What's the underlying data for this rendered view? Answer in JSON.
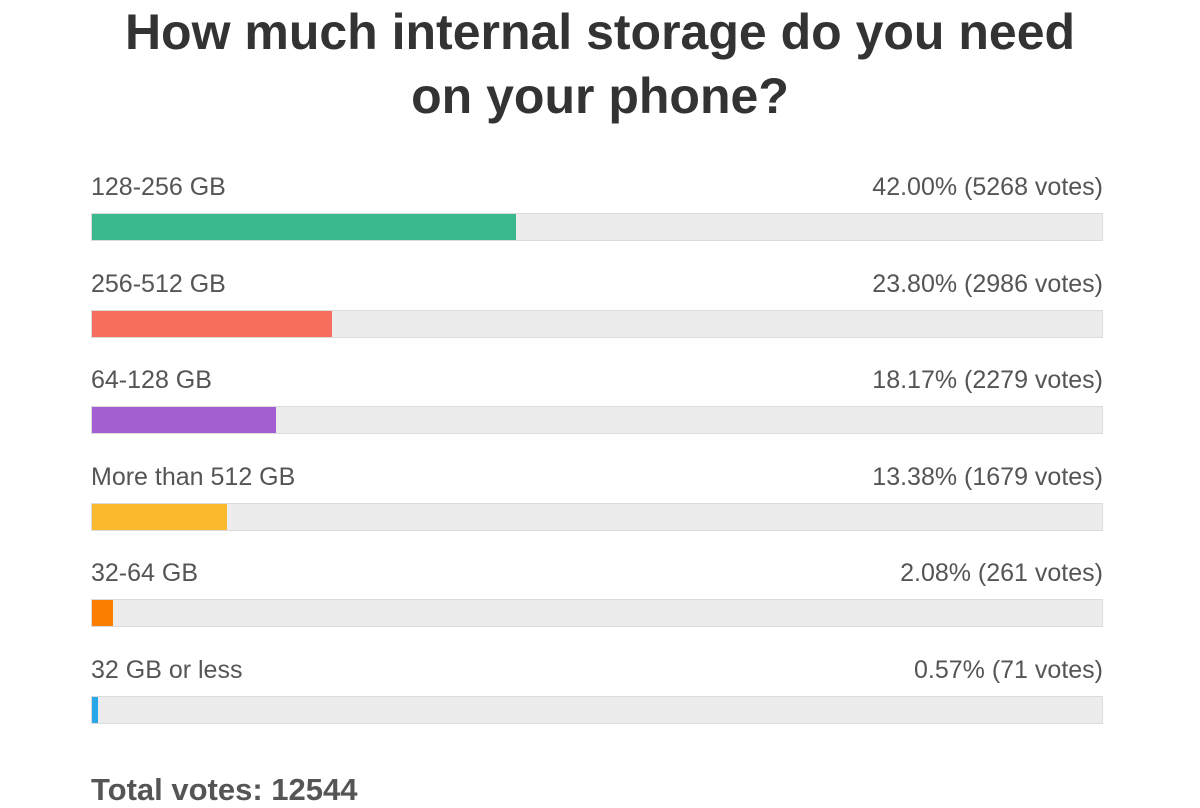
{
  "chart_data": {
    "type": "bar",
    "title": "How much internal storage do you need on your phone?",
    "categories": [
      "128-256 GB",
      "256-512 GB",
      "64-128 GB",
      "More than 512 GB",
      "32-64 GB",
      "32 GB or less"
    ],
    "values": [
      42.0,
      23.8,
      18.17,
      13.38,
      2.08,
      0.57
    ],
    "value_labels": [
      "42.00% (5268 votes)",
      "23.80% (2986 votes)",
      "18.17% (2279 votes)",
      "13.38% (1679 votes)",
      "2.08% (261 votes)",
      "0.57% (71 votes)"
    ],
    "colors": [
      "#3ab88e",
      "#f76d5e",
      "#a35fd1",
      "#fbb92e",
      "#fb7e00",
      "#2aa7e8"
    ],
    "xlim": [
      0,
      100
    ],
    "footer": "Total votes: 12544"
  }
}
